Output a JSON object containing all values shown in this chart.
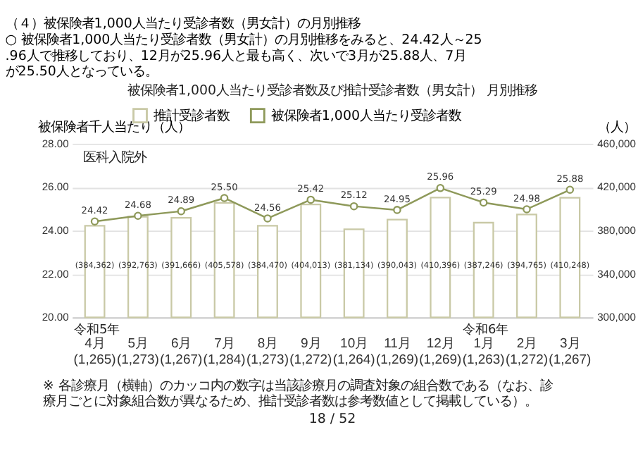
{
  "chart_data": {
    "type": "bar",
    "title": "被保険者1,000人当たり受診者数及び推計受診者数（男女計） 月別推移",
    "ylabel": "被保険者千人当たり（人）",
    "y2label": "（人）",
    "categories": [
      "4月\n(1,265)",
      "5月\n(1,273)",
      "6月\n(1,267)",
      "7月\n(1,284)",
      "8月\n(1,273)",
      "9月\n(1,272)",
      "10月\n(1,264)",
      "11月\n(1,269)",
      "12月\n(1,269)",
      "1月\n(1,263)",
      "2月\n(1,272)",
      "3月\n(1,267)"
    ],
    "series": [
      {
        "name": "推計受診者数",
        "axis": "y2",
        "color": "#c9c9a6",
        "values": [
          384362,
          392763,
          391666,
          405578,
          384470,
          404013,
          381134,
          390043,
          410396,
          387246,
          394765,
          410248
        ],
        "value_labels": [
          "(384,362)",
          "(392,763)",
          "(391,666)",
          "(405,578)",
          "(384,470)",
          "(404,013)",
          "(381,134)",
          "(390,043)",
          "(410,396)",
          "(387,246)",
          "(394,765)",
          "(410,248)"
        ]
      },
      {
        "name": "被保険者1,000人当たり受診者数",
        "type": "line",
        "marker": "circle",
        "color": "#8e995a",
        "values": [
          24.42,
          24.68,
          24.89,
          25.5,
          24.56,
          25.42,
          25.12,
          24.95,
          25.96,
          25.29,
          24.98,
          25.88
        ],
        "value_labels": [
          "24.42",
          "24.68",
          "24.89",
          "25.50",
          "24.56",
          "25.42",
          "25.12",
          "24.95",
          "25.96",
          "25.29",
          "24.98",
          "25.88"
        ]
      }
    ],
    "ylim": [
      20,
      28
    ],
    "yticks": [
      {
        "value": 20,
        "label": "20.00"
      },
      {
        "value": 22,
        "label": "22.00"
      },
      {
        "value": 24,
        "label": "24.00"
      },
      {
        "value": 26,
        "label": "26.00"
      },
      {
        "value": 28,
        "label": "28.00"
      }
    ],
    "y2lim": [
      300000,
      460000
    ],
    "y2ticks": [
      {
        "value": 300000,
        "label": "300,000"
      },
      {
        "value": 340000,
        "label": "340,000"
      },
      {
        "value": 380000,
        "label": "380,000"
      },
      {
        "value": 420000,
        "label": "420,000"
      },
      {
        "value": 460000,
        "label": "460,000"
      }
    ],
    "grid": "y",
    "legend": "top",
    "annotations": [
      "（４）被保険者1,000人当たり受診者数（男女計）の月別推移",
      "○ 被保険者1,000人当たり受診者数（男女計）の月別推移をみると、24.42人～25.96人で推移しており、12月が25.96人と最も高く、次いで3月が25.88人、7月が25.50人となっている。",
      "医科入院外",
      "令和5年",
      "令和6年",
      "※ 各診療月（横軸）のカッコ内の数字は当該診療月の調査対象の組合数である（なお、診療月ごとに対象組合数が異なるため、推計受診者数は参考数値として掲載している）。",
      "18 / 52"
    ]
  }
}
